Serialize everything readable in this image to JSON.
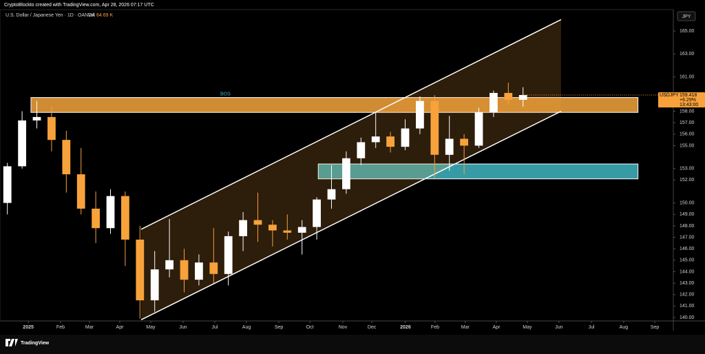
{
  "chart_data": {
    "type": "candlestick",
    "credit": "CryptoBlockto created with TradingView.com, Apr 28, 2026 07:17 UTC",
    "title": "U.S. Dollar / Japanese Yen · 1D · OANDA",
    "volume_label": "Vol",
    "volume_value": "64.69 K",
    "currency": "JPY",
    "symbol": "USDJPY",
    "last_price": 159.418,
    "change": {
      "value": 6.29,
      "label": "+6.29%"
    },
    "countdown": "13:43:00",
    "brand": "TradingView",
    "categories": [
      null,
      null,
      null,
      null,
      null,
      null,
      null,
      null,
      null,
      null,
      null,
      null,
      null,
      null,
      null,
      null,
      null,
      null,
      null,
      null,
      null,
      null,
      null,
      null,
      null,
      null,
      null,
      null,
      null,
      null,
      null,
      null,
      null,
      null,
      null,
      null
    ],
    "open": [
      150.0,
      153.2,
      157.2,
      157.5,
      155.5,
      152.5,
      149.5,
      147.8,
      150.6,
      146.8,
      141.5,
      144.2,
      145.0,
      143.3,
      144.8,
      143.8,
      147.1,
      148.5,
      148.1,
      147.6,
      147.4,
      147.9,
      150.3,
      151.2,
      153.9,
      155.3,
      155.8,
      154.9,
      156.5,
      158.9,
      154.2,
      155.6,
      155.0,
      157.9,
      159.6,
      159.0
    ],
    "high": [
      153.5,
      158.0,
      158.9,
      158.4,
      156.3,
      154.8,
      151.0,
      151.2,
      151.0,
      148.0,
      145.8,
      148.6,
      146.0,
      145.5,
      147.8,
      147.5,
      149.2,
      150.9,
      148.5,
      149.0,
      148.5,
      150.5,
      153.3,
      154.5,
      155.7,
      157.9,
      156.2,
      157.3,
      159.3,
      159.4,
      157.6,
      156.0,
      158.3,
      159.8,
      160.5,
      160.1
    ],
    "low": [
      149.0,
      153.0,
      156.5,
      154.5,
      150.9,
      149.0,
      146.5,
      147.3,
      144.5,
      139.9,
      140.5,
      143.5,
      142.2,
      142.8,
      143.0,
      142.8,
      145.8,
      146.6,
      146.2,
      146.8,
      145.5,
      146.8,
      149.5,
      150.8,
      153.3,
      154.8,
      154.4,
      154.6,
      156.0,
      152.1,
      152.8,
      152.5,
      154.8,
      157.5,
      158.6,
      158.4
    ],
    "close": [
      153.2,
      157.2,
      157.5,
      155.5,
      152.5,
      149.5,
      147.8,
      150.6,
      146.8,
      141.5,
      144.2,
      145.0,
      143.3,
      144.8,
      143.8,
      147.1,
      148.5,
      148.1,
      147.6,
      147.4,
      147.9,
      150.3,
      151.2,
      153.9,
      155.3,
      155.8,
      154.9,
      156.5,
      158.9,
      154.2,
      155.6,
      155.0,
      157.9,
      159.6,
      159.0,
      159.418
    ],
    "up_color": "#ffffff",
    "down_color": "#f7a23b",
    "xlim": [
      -0.5,
      45.2
    ],
    "ylim": [
      139.7,
      166.87
    ],
    "xticks": [
      {
        "value": 1.42,
        "label": "2025"
      },
      {
        "value": 3.61,
        "label": "Feb"
      },
      {
        "value": 5.57,
        "label": "Mar"
      },
      {
        "value": 7.63,
        "label": "Apr"
      },
      {
        "value": 9.73,
        "label": "May"
      },
      {
        "value": 11.93,
        "label": "Jun"
      },
      {
        "value": 14.08,
        "label": "Jul"
      },
      {
        "value": 16.23,
        "label": "Aug"
      },
      {
        "value": 18.43,
        "label": "Sep"
      },
      {
        "value": 20.53,
        "label": "Oct"
      },
      {
        "value": 22.77,
        "label": "Nov"
      },
      {
        "value": 24.74,
        "label": "Dec"
      },
      {
        "value": 27.02,
        "label": "2026"
      },
      {
        "value": 29.03,
        "label": "Feb"
      },
      {
        "value": 31.08,
        "label": "Mar"
      },
      {
        "value": 33.19,
        "label": "Apr"
      },
      {
        "value": 35.29,
        "label": "May"
      },
      {
        "value": 37.44,
        "label": "Jun"
      },
      {
        "value": 39.64,
        "label": "Jul"
      },
      {
        "value": 41.83,
        "label": "Aug"
      },
      {
        "value": 43.94,
        "label": "Sep"
      }
    ],
    "yticks": [
      {
        "value": 165,
        "label": "165.00"
      },
      {
        "value": 163,
        "label": "163.00"
      },
      {
        "value": 161,
        "label": "161.00"
      },
      {
        "value": 158,
        "label": "158.00"
      },
      {
        "value": 157,
        "label": "157.00"
      },
      {
        "value": 156,
        "label": "156.00"
      },
      {
        "value": 155,
        "label": "155.00"
      },
      {
        "value": 153,
        "label": "153.00"
      },
      {
        "value": 152,
        "label": "152.00"
      },
      {
        "value": 150,
        "label": "150.00"
      },
      {
        "value": 149,
        "label": "149.00"
      },
      {
        "value": 148,
        "label": "148.00"
      },
      {
        "value": 147,
        "label": "147.00"
      },
      {
        "value": 146,
        "label": "146.00"
      },
      {
        "value": 145,
        "label": "145.00"
      },
      {
        "value": 144,
        "label": "144.00"
      },
      {
        "value": 143,
        "label": "143.00"
      },
      {
        "value": 142,
        "label": "142.00"
      },
      {
        "value": 141,
        "label": "141.00"
      },
      {
        "value": 140,
        "label": "140.00"
      }
    ],
    "channel": {
      "x": [
        9.08,
        37.58
      ],
      "upper": [
        147.7,
        166.0
      ],
      "lower": [
        139.8,
        158.0
      ]
    },
    "zones": [
      {
        "x": [
          1.6,
          42.8
        ],
        "y": [
          157.9,
          159.2
        ],
        "color": "#f4a43c"
      },
      {
        "x": [
          21.1,
          42.8
        ],
        "y": [
          152.1,
          153.4
        ],
        "color": "#3fb6c2"
      }
    ],
    "annotations": [
      {
        "text": "BOS",
        "x": 14.8,
        "y": 159.5
      }
    ]
  }
}
